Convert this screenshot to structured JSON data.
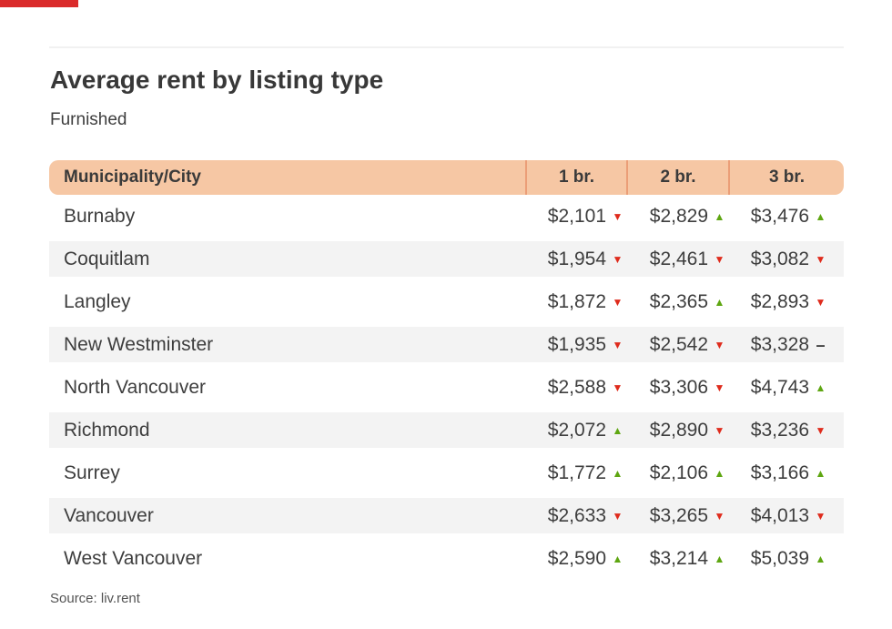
{
  "page": {
    "title": "Average rent by listing type",
    "subtitle": "Furnished",
    "source": "Source: liv.rent",
    "accent_color": "#da2b2b"
  },
  "colors": {
    "header_bg": "#f6c7a4",
    "header_divider": "#eb9e77",
    "stripe": "#f3f3f3",
    "up": "#5ea611",
    "down": "#df2b1c",
    "text": "#3e3e3e"
  },
  "trend_glyphs": {
    "up": "▲",
    "down": "▼",
    "flat": "–"
  },
  "table": {
    "columns": [
      "Municipality/City",
      "1 br.",
      "2 br.",
      "3 br."
    ],
    "rows": [
      {
        "city": "Burnaby",
        "cells": [
          {
            "value": "$2,101",
            "trend": "down"
          },
          {
            "value": "$2,829",
            "trend": "up"
          },
          {
            "value": "$3,476",
            "trend": "up"
          }
        ]
      },
      {
        "city": "Coquitlam",
        "cells": [
          {
            "value": "$1,954",
            "trend": "down"
          },
          {
            "value": "$2,461",
            "trend": "down"
          },
          {
            "value": "$3,082",
            "trend": "down"
          }
        ]
      },
      {
        "city": "Langley",
        "cells": [
          {
            "value": "$1,872",
            "trend": "down"
          },
          {
            "value": "$2,365",
            "trend": "up"
          },
          {
            "value": "$2,893",
            "trend": "down"
          }
        ]
      },
      {
        "city": "New Westminster",
        "cells": [
          {
            "value": "$1,935",
            "trend": "down"
          },
          {
            "value": "$2,542",
            "trend": "down"
          },
          {
            "value": "$3,328",
            "trend": "flat"
          }
        ]
      },
      {
        "city": "North Vancouver",
        "cells": [
          {
            "value": "$2,588",
            "trend": "down"
          },
          {
            "value": "$3,306",
            "trend": "down"
          },
          {
            "value": "$4,743",
            "trend": "up"
          }
        ]
      },
      {
        "city": "Richmond",
        "cells": [
          {
            "value": "$2,072",
            "trend": "up"
          },
          {
            "value": "$2,890",
            "trend": "down"
          },
          {
            "value": "$3,236",
            "trend": "down"
          }
        ]
      },
      {
        "city": "Surrey",
        "cells": [
          {
            "value": "$1,772",
            "trend": "up"
          },
          {
            "value": "$2,106",
            "trend": "up"
          },
          {
            "value": "$3,166",
            "trend": "up"
          }
        ]
      },
      {
        "city": "Vancouver",
        "cells": [
          {
            "value": "$2,633",
            "trend": "down"
          },
          {
            "value": "$3,265",
            "trend": "down"
          },
          {
            "value": "$4,013",
            "trend": "down"
          }
        ]
      },
      {
        "city": "West Vancouver",
        "cells": [
          {
            "value": "$2,590",
            "trend": "up"
          },
          {
            "value": "$3,214",
            "trend": "up"
          },
          {
            "value": "$5,039",
            "trend": "up"
          }
        ]
      }
    ]
  },
  "chart_data": {
    "type": "table",
    "title": "Average rent by listing type",
    "subtitle": "Furnished",
    "source": "Source: liv.rent",
    "columns": [
      "Municipality/City",
      "1 br.",
      "2 br.",
      "3 br."
    ],
    "rows": [
      {
        "municipality": "Burnaby",
        "values": [
          2101,
          2829,
          3476
        ],
        "trends": [
          "down",
          "up",
          "up"
        ]
      },
      {
        "municipality": "Coquitlam",
        "values": [
          1954,
          2461,
          3082
        ],
        "trends": [
          "down",
          "down",
          "down"
        ]
      },
      {
        "municipality": "Langley",
        "values": [
          1872,
          2365,
          2893
        ],
        "trends": [
          "down",
          "up",
          "down"
        ]
      },
      {
        "municipality": "New Westminster",
        "values": [
          1935,
          2542,
          3328
        ],
        "trends": [
          "down",
          "down",
          "flat"
        ]
      },
      {
        "municipality": "North Vancouver",
        "values": [
          2588,
          3306,
          4743
        ],
        "trends": [
          "down",
          "down",
          "up"
        ]
      },
      {
        "municipality": "Richmond",
        "values": [
          2072,
          2890,
          3236
        ],
        "trends": [
          "up",
          "down",
          "down"
        ]
      },
      {
        "municipality": "Surrey",
        "values": [
          1772,
          2106,
          3166
        ],
        "trends": [
          "up",
          "up",
          "up"
        ]
      },
      {
        "municipality": "Vancouver",
        "values": [
          2633,
          3265,
          4013
        ],
        "trends": [
          "down",
          "down",
          "down"
        ]
      },
      {
        "municipality": "West Vancouver",
        "values": [
          2590,
          3214,
          5039
        ],
        "trends": [
          "up",
          "up",
          "up"
        ]
      }
    ]
  }
}
